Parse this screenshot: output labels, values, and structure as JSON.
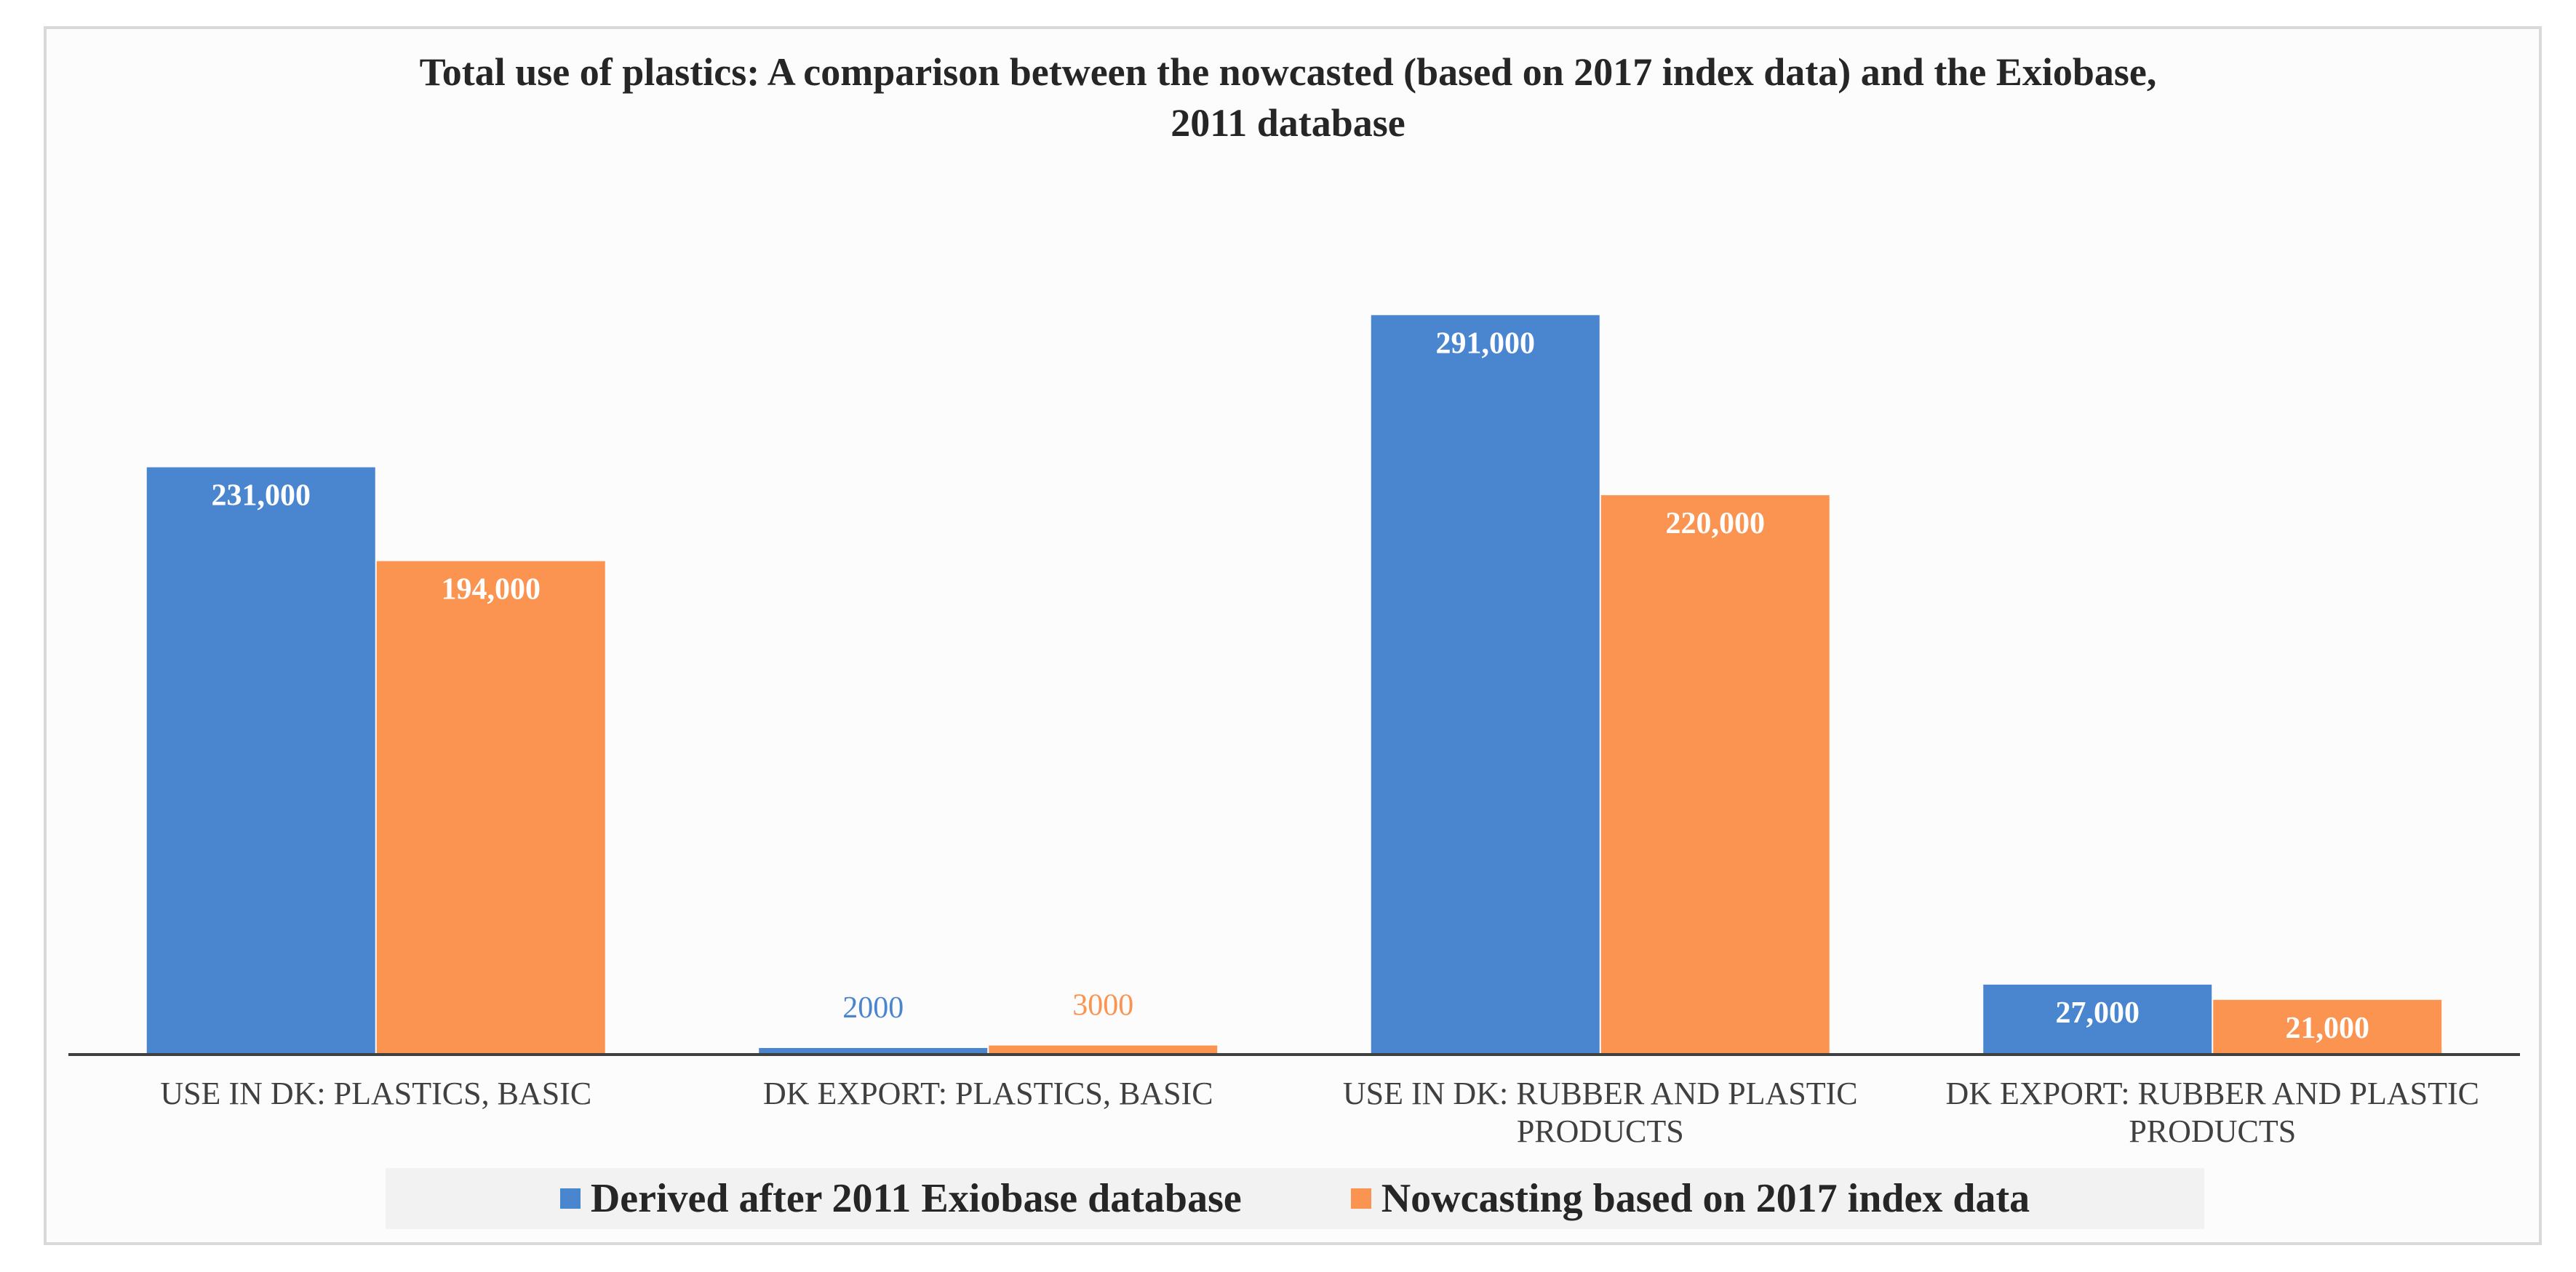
{
  "chart_data": {
    "type": "bar",
    "title": "Total use of plastics: A comparison between the nowcasted (based on 2017 index data) and the Exiobase, 2011 database",
    "title_lines": [
      "Total use of plastics: A comparison between the nowcasted (based on 2017 index data) and the Exiobase,",
      "2011 database"
    ],
    "categories": [
      [
        "USE IN DK: PLASTICS, BASIC"
      ],
      [
        "DK EXPORT: PLASTICS, BASIC"
      ],
      [
        "USE IN DK: RUBBER AND PLASTIC",
        "PRODUCTS"
      ],
      [
        "DK EXPORT: RUBBER AND PLASTIC",
        "PRODUCTS"
      ]
    ],
    "series": [
      {
        "name": "Derived after 2011 Exiobase database",
        "color": "#4a86d0",
        "values": [
          231000,
          2000,
          291000,
          27000
        ],
        "labels": [
          "231,000",
          "2000",
          "291,000",
          "27,000"
        ],
        "label_inside": [
          true,
          false,
          true,
          true
        ]
      },
      {
        "name": "Nowcasting based on 2017 index data",
        "color": "#fb9450",
        "values": [
          194000,
          3000,
          220000,
          21000
        ],
        "labels": [
          "194,000",
          "3000",
          "220,000",
          "21,000"
        ],
        "label_inside": [
          true,
          false,
          true,
          true
        ]
      }
    ],
    "ylim": [
      0,
      320000
    ],
    "grid": false,
    "legend_position": "bottom",
    "xlabel": "",
    "ylabel": ""
  }
}
